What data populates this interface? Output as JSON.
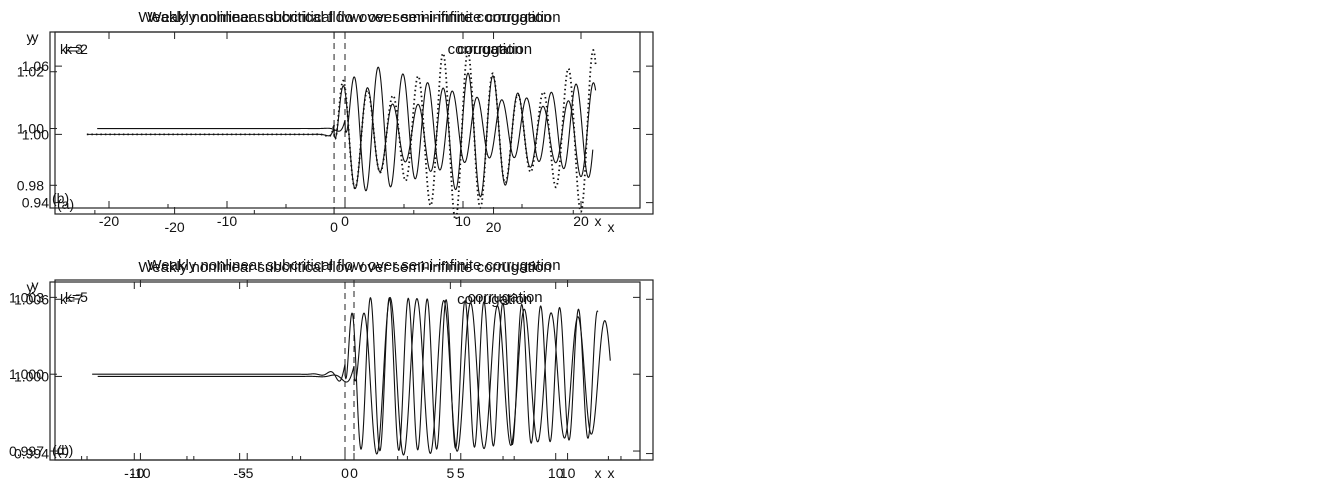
{
  "chart_data": [
    {
      "type": "line",
      "title": "Weakly nonlinear subcritical flow over semi-infinite corrugation",
      "panel_label": "(a)",
      "k_label": "k=2",
      "annotation": "corrugation",
      "xlabel": "x",
      "ylabel": "y",
      "xlim": [
        -35,
        40
      ],
      "ylim": [
        0.93,
        1.09
      ],
      "xticks": [
        -20,
        0,
        20
      ],
      "xtick_labels": [
        "-20",
        "0",
        "20"
      ],
      "yticks": [
        0.94,
        1.0,
        1.06
      ],
      "ytick_labels": [
        "0.94",
        "1.00",
        "1.06"
      ],
      "k": 2,
      "x_range": [
        -31,
        32.8
      ],
      "baseline": 1.0,
      "series": [
        {
          "style": "solid",
          "amplitude": 0.055
        },
        {
          "style": "dotted",
          "amplitude": 0.075
        }
      ],
      "onset_marker_x": 0,
      "grid": false
    },
    {
      "type": "line",
      "title": "Weakly nonlinear subcritical flow over semi-infinite corrugation",
      "panel_label": "(b)",
      "k_label": "k=3",
      "annotation": "corrugation",
      "xlabel": "x",
      "ylabel": "y",
      "xlim": [
        -25,
        25
      ],
      "ylim": [
        0.972,
        1.034
      ],
      "xticks": [
        -20,
        -10,
        0,
        10,
        20
      ],
      "xtick_labels": [
        "-20",
        "-10",
        "0",
        "10",
        "20"
      ],
      "yticks": [
        0.98,
        1.0,
        1.02
      ],
      "ytick_labels": [
        "0.98",
        "1.00",
        "1.02"
      ],
      "k": 3,
      "x_range": [
        -21,
        21
      ],
      "baseline": 1.0,
      "series": [
        {
          "style": "solid",
          "amplitude": 0.023
        }
      ],
      "onset_marker_x": 0,
      "grid": false
    },
    {
      "type": "line",
      "title": "Weakly nonlinear subcritical flow over semi-infinite corrugation",
      "panel_label": "(c)",
      "k_label": "k=5",
      "annotation": "corrugation",
      "xlabel": "x",
      "ylabel": "y",
      "xlim": [
        -14,
        14
      ],
      "ylim": [
        0.9935,
        1.0075
      ],
      "xticks": [
        -10,
        -5,
        0,
        5,
        10
      ],
      "xtick_labels": [
        "-10",
        "-5",
        "0",
        "5",
        "10"
      ],
      "yticks": [
        0.994,
        1.0,
        1.006
      ],
      "ytick_labels": [
        "0.994",
        "1.000",
        "1.006"
      ],
      "k": 5,
      "x_range": [
        -12,
        12
      ],
      "baseline": 1.0,
      "series": [
        {
          "style": "solid",
          "amplitude": 0.0062
        }
      ],
      "onset_marker_x": 0,
      "grid": false
    },
    {
      "type": "line",
      "title": "Weakly nonlinear subcritical flow over semi-infinite corrugation",
      "panel_label": "(d)",
      "k_label": "k=7",
      "annotation": "corrugation",
      "xlabel": "x",
      "ylabel": "y",
      "xlim": [
        -14,
        14
      ],
      "ylim": [
        0.99665,
        1.0036
      ],
      "xticks": [
        -10,
        -5,
        0,
        5,
        10
      ],
      "xtick_labels": [
        "-10",
        "-5",
        "0",
        "5",
        "10"
      ],
      "yticks": [
        0.997,
        1.0,
        1.003
      ],
      "ytick_labels": [
        "0.997",
        "1.000",
        "1.003"
      ],
      "k": 7,
      "x_range": [
        -12,
        12
      ],
      "baseline": 1.0,
      "series": [
        {
          "style": "solid",
          "amplitude": 0.003
        }
      ],
      "onset_marker_x": 0,
      "grid": false
    }
  ]
}
